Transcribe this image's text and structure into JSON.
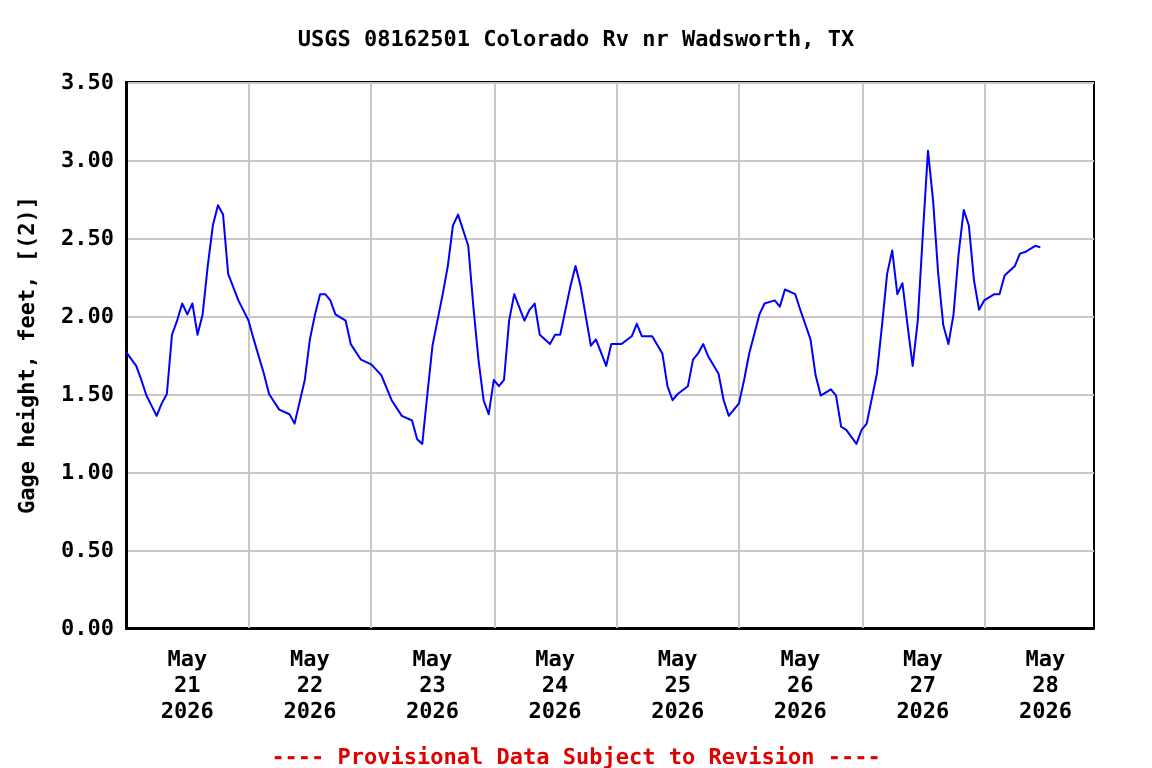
{
  "chart_data": {
    "type": "line",
    "title": "USGS 08162501 Colorado Rv nr Wadsworth, TX",
    "ylabel": "Gage height, feet, [(2)]",
    "annotations": [
      "---- Provisional Data Subject to Revision ----"
    ],
    "x": [
      "2026-05-21T00:00",
      "2026-05-21T02:00",
      "2026-05-21T03:00",
      "2026-05-21T04:00",
      "2026-05-21T06:00",
      "2026-05-21T07:00",
      "2026-05-21T08:00",
      "2026-05-21T09:00",
      "2026-05-21T10:00",
      "2026-05-21T11:00",
      "2026-05-21T12:00",
      "2026-05-21T13:00",
      "2026-05-21T14:00",
      "2026-05-21T15:00",
      "2026-05-21T16:00",
      "2026-05-21T17:00",
      "2026-05-21T18:00",
      "2026-05-21T19:00",
      "2026-05-21T20:00",
      "2026-05-21T22:00",
      "2026-05-22T00:00",
      "2026-05-22T01:00",
      "2026-05-22T03:00",
      "2026-05-22T04:00",
      "2026-05-22T06:00",
      "2026-05-22T08:00",
      "2026-05-22T09:00",
      "2026-05-22T11:00",
      "2026-05-22T12:00",
      "2026-05-22T13:00",
      "2026-05-22T14:00",
      "2026-05-22T15:00",
      "2026-05-22T16:00",
      "2026-05-22T17:00",
      "2026-05-22T19:00",
      "2026-05-22T20:00",
      "2026-05-22T22:00",
      "2026-05-23T00:00",
      "2026-05-23T02:00",
      "2026-05-23T04:00",
      "2026-05-23T06:00",
      "2026-05-23T08:00",
      "2026-05-23T09:00",
      "2026-05-23T10:00",
      "2026-05-23T11:00",
      "2026-05-23T12:00",
      "2026-05-23T14:00",
      "2026-05-23T15:00",
      "2026-05-23T16:00",
      "2026-05-23T17:00",
      "2026-05-23T19:00",
      "2026-05-23T20:00",
      "2026-05-23T21:00",
      "2026-05-23T22:00",
      "2026-05-23T23:00",
      "2026-05-24T00:00",
      "2026-05-24T01:00",
      "2026-05-24T02:00",
      "2026-05-24T03:00",
      "2026-05-24T04:00",
      "2026-05-24T06:00",
      "2026-05-24T07:00",
      "2026-05-24T08:00",
      "2026-05-24T09:00",
      "2026-05-24T11:00",
      "2026-05-24T12:00",
      "2026-05-24T13:00",
      "2026-05-24T15:00",
      "2026-05-24T16:00",
      "2026-05-24T17:00",
      "2026-05-24T18:00",
      "2026-05-24T19:00",
      "2026-05-24T20:00",
      "2026-05-24T22:00",
      "2026-05-24T23:00",
      "2026-05-25T01:00",
      "2026-05-25T03:00",
      "2026-05-25T04:00",
      "2026-05-25T05:00",
      "2026-05-25T07:00",
      "2026-05-25T09:00",
      "2026-05-25T10:00",
      "2026-05-25T11:00",
      "2026-05-25T12:00",
      "2026-05-25T14:00",
      "2026-05-25T15:00",
      "2026-05-25T16:00",
      "2026-05-25T17:00",
      "2026-05-25T18:00",
      "2026-05-25T20:00",
      "2026-05-25T21:00",
      "2026-05-25T22:00",
      "2026-05-26T00:00",
      "2026-05-26T01:00",
      "2026-05-26T02:00",
      "2026-05-26T04:00",
      "2026-05-26T05:00",
      "2026-05-26T07:00",
      "2026-05-26T08:00",
      "2026-05-26T09:00",
      "2026-05-26T11:00",
      "2026-05-26T12:00",
      "2026-05-26T14:00",
      "2026-05-26T15:00",
      "2026-05-26T16:00",
      "2026-05-26T18:00",
      "2026-05-26T19:00",
      "2026-05-26T20:00",
      "2026-05-26T21:00",
      "2026-05-26T23:00",
      "2026-05-27T00:00",
      "2026-05-27T01:00",
      "2026-05-27T03:00",
      "2026-05-27T04:00",
      "2026-05-27T05:00",
      "2026-05-27T06:00",
      "2026-05-27T07:00",
      "2026-05-27T08:00",
      "2026-05-27T09:00",
      "2026-05-27T10:00",
      "2026-05-27T11:00",
      "2026-05-27T12:00",
      "2026-05-27T13:00",
      "2026-05-27T14:00",
      "2026-05-27T15:00",
      "2026-05-27T16:00",
      "2026-05-27T17:00",
      "2026-05-27T18:00",
      "2026-05-27T19:00",
      "2026-05-27T20:00",
      "2026-05-27T21:00",
      "2026-05-27T22:00",
      "2026-05-27T23:00",
      "2026-05-28T00:00",
      "2026-05-28T02:00",
      "2026-05-28T03:00",
      "2026-05-28T04:00",
      "2026-05-28T06:00",
      "2026-05-28T07:00",
      "2026-05-28T08:00",
      "2026-05-28T10:00",
      "2026-05-28T11:00"
    ],
    "series": [
      {
        "color": "#0000ff",
        "values": [
          1.77,
          1.68,
          1.59,
          1.49,
          1.36,
          1.44,
          1.5,
          1.88,
          1.97,
          2.08,
          2.01,
          2.08,
          1.88,
          2.01,
          2.32,
          2.58,
          2.71,
          2.65,
          2.27,
          2.1,
          1.97,
          1.85,
          1.63,
          1.5,
          1.4,
          1.37,
          1.31,
          1.59,
          1.85,
          2.01,
          2.14,
          2.14,
          2.1,
          2.01,
          1.97,
          1.82,
          1.72,
          1.69,
          1.62,
          1.46,
          1.36,
          1.33,
          1.21,
          1.18,
          1.5,
          1.81,
          2.14,
          2.32,
          2.58,
          2.65,
          2.45,
          2.06,
          1.72,
          1.46,
          1.37,
          1.59,
          1.55,
          1.59,
          1.97,
          2.14,
          1.97,
          2.04,
          2.08,
          1.88,
          1.82,
          1.88,
          1.88,
          2.19,
          2.32,
          2.19,
          2.0,
          1.81,
          1.85,
          1.68,
          1.82,
          1.82,
          1.87,
          1.95,
          1.87,
          1.87,
          1.76,
          1.55,
          1.46,
          1.5,
          1.55,
          1.72,
          1.76,
          1.82,
          1.74,
          1.63,
          1.46,
          1.36,
          1.44,
          1.59,
          1.76,
          2.01,
          2.08,
          2.1,
          2.06,
          2.17,
          2.14,
          2.04,
          1.85,
          1.62,
          1.49,
          1.53,
          1.49,
          1.29,
          1.27,
          1.18,
          1.27,
          1.31,
          1.63,
          1.94,
          2.27,
          2.42,
          2.14,
          2.21,
          1.94,
          1.68,
          1.97,
          2.53,
          3.06,
          2.74,
          2.27,
          1.94,
          1.82,
          2.01,
          2.4,
          2.68,
          2.58,
          2.23,
          2.04,
          2.1,
          2.14,
          2.14,
          2.26,
          2.32,
          2.4,
          2.41,
          2.45,
          2.44
        ]
      }
    ],
    "xlim": [
      "2026-05-21T00:00",
      "2026-05-28T21:30"
    ],
    "xticks": [
      {
        "value": "2026-05-21T12:00",
        "label": "May\n21\n2026"
      },
      {
        "value": "2026-05-22T00:00",
        "label": null
      },
      {
        "value": "2026-05-22T12:00",
        "label": "May\n22\n2026"
      },
      {
        "value": "2026-05-23T00:00",
        "label": null
      },
      {
        "value": "2026-05-23T12:00",
        "label": "May\n23\n2026"
      },
      {
        "value": "2026-05-24T00:00",
        "label": null
      },
      {
        "value": "2026-05-24T12:00",
        "label": "May\n24\n2026"
      },
      {
        "value": "2026-05-25T00:00",
        "label": null
      },
      {
        "value": "2026-05-25T12:00",
        "label": "May\n25\n2026"
      },
      {
        "value": "2026-05-26T00:00",
        "label": null
      },
      {
        "value": "2026-05-26T12:00",
        "label": "May\n26\n2026"
      },
      {
        "value": "2026-05-27T00:00",
        "label": null
      },
      {
        "value": "2026-05-27T12:00",
        "label": "May\n27\n2026"
      },
      {
        "value": "2026-05-28T00:00",
        "label": null
      },
      {
        "value": "2026-05-28T12:00",
        "label": "May\n28\n2026"
      }
    ],
    "ylim": [
      0,
      3.5
    ],
    "yticks": [
      {
        "value": 0,
        "label": "0.00"
      },
      {
        "value": 0.5,
        "label": "0.50"
      },
      {
        "value": 1,
        "label": "1.00"
      },
      {
        "value": 1.5,
        "label": "1.50"
      },
      {
        "value": 2,
        "label": "2.00"
      },
      {
        "value": 2.5,
        "label": "2.50"
      },
      {
        "value": 3,
        "label": "3.00"
      },
      {
        "value": 3.5,
        "label": "3.50"
      }
    ],
    "grid": true,
    "marker": "none",
    "line_style": "solid"
  }
}
